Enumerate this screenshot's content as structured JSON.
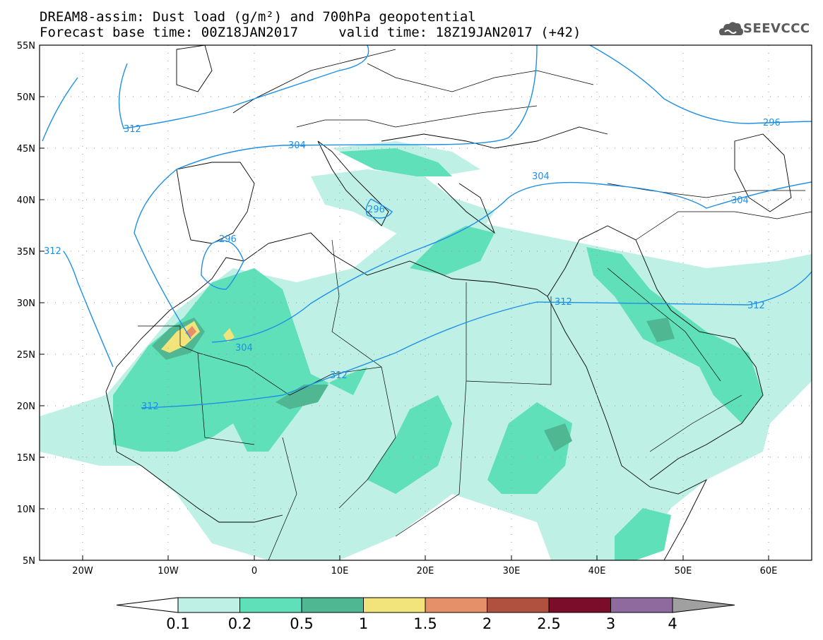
{
  "title": {
    "line1": "DREAM8-assim: Dust load (g/m²) and 700hPa geopotential",
    "line2": "Forecast base time: 00Z18JAN2017     valid time: 18Z19JAN2017 (+42)"
  },
  "logo": {
    "text": "SEEVCCC",
    "icon": "cloud-logo-icon"
  },
  "map": {
    "lon_range": [
      -25,
      65
    ],
    "lat_range": [
      5,
      55
    ],
    "lat_ticks": [
      "55N",
      "50N",
      "45N",
      "40N",
      "35N",
      "30N",
      "25N",
      "20N",
      "15N",
      "10N",
      "5N"
    ],
    "lon_ticks": [
      "20W",
      "10W",
      "0",
      "10E",
      "20E",
      "30E",
      "40E",
      "50E",
      "60E"
    ],
    "grid": "dotted",
    "contour_color": "#1e8fe6",
    "contour_labels": [
      "312",
      "304",
      "296",
      "296",
      "312",
      "304",
      "312",
      "312",
      "304",
      "296",
      "304",
      "312",
      "312"
    ]
  },
  "colorbar": {
    "levels": [
      "0.1",
      "0.2",
      "0.5",
      "1",
      "1.5",
      "2",
      "2.5",
      "3",
      "4"
    ],
    "colors": [
      "#bff0e6",
      "#5fe0b8",
      "#4fb892",
      "#f2e47a",
      "#e6906a",
      "#b0503e",
      "#7b0c2a",
      "#8f6a9e",
      "#a0a0a0"
    ]
  }
}
